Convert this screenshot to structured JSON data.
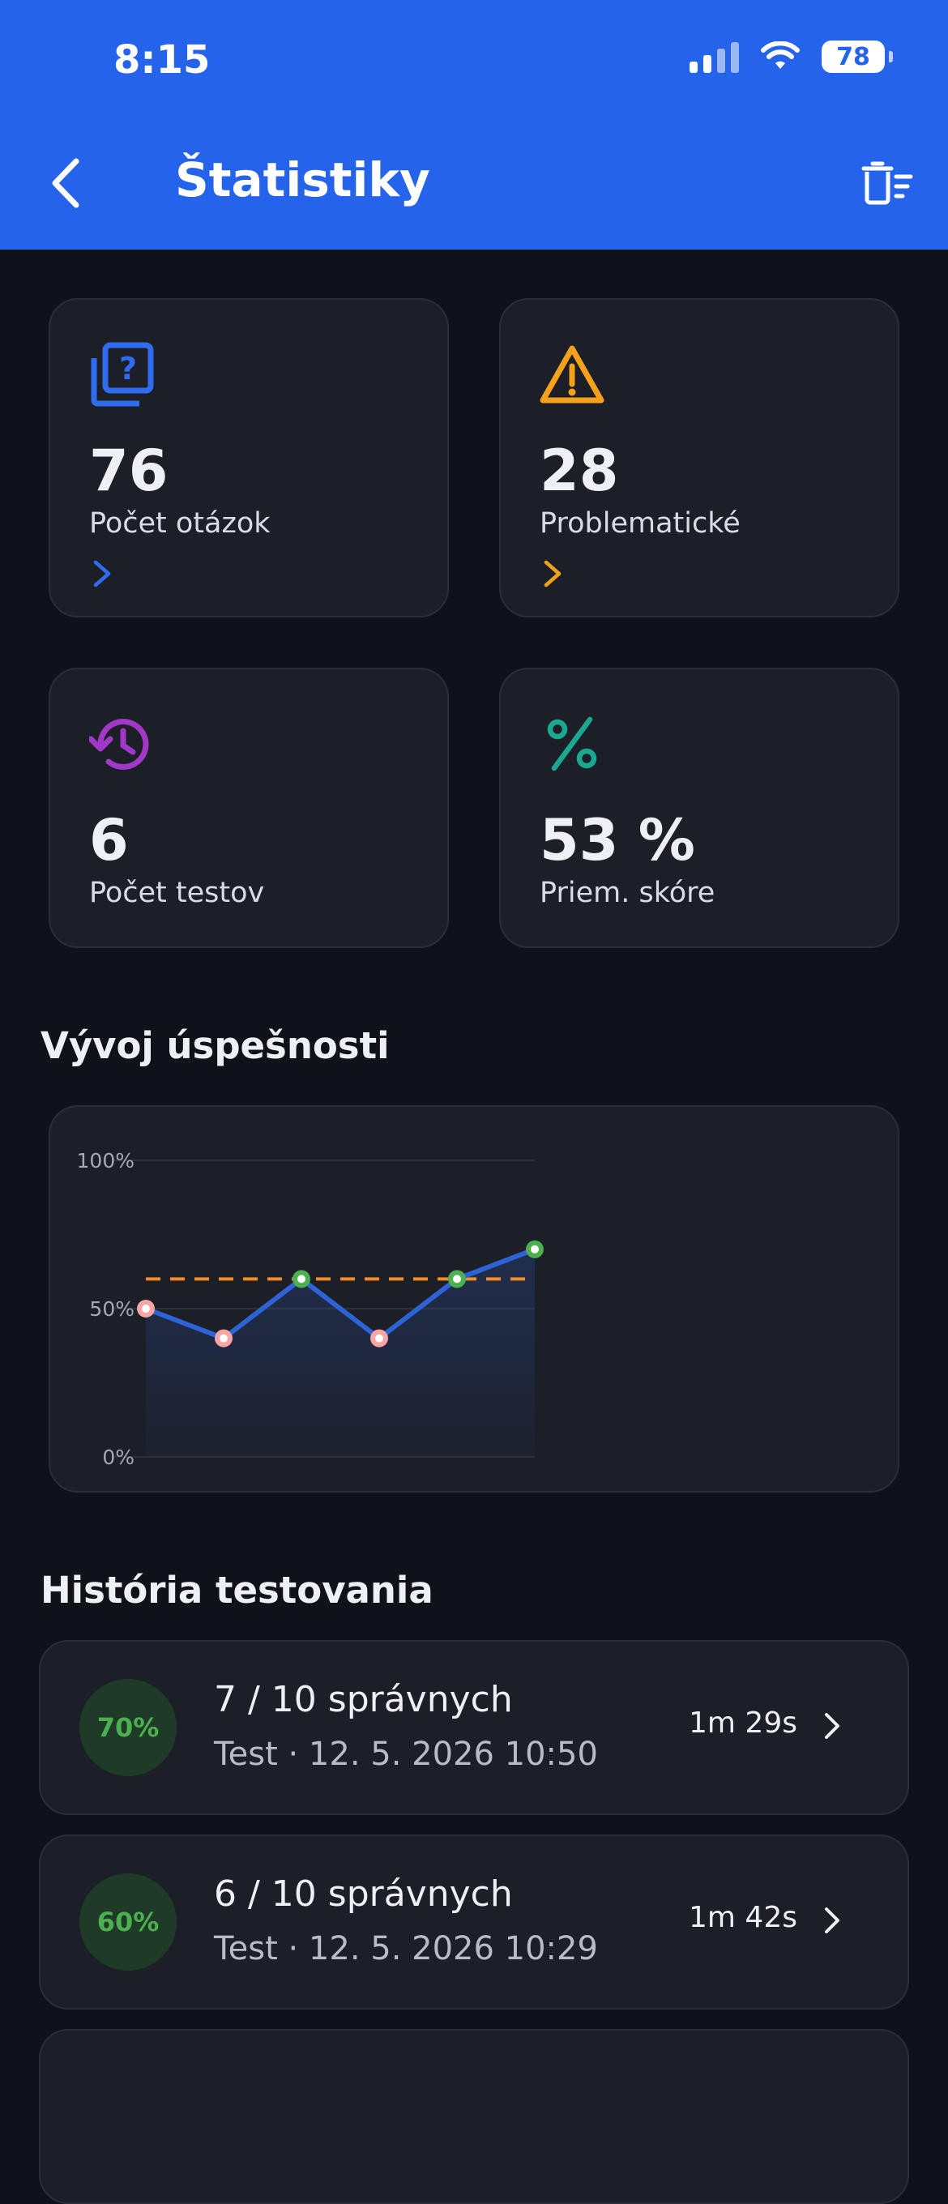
{
  "status_bar": {
    "time": "8:15",
    "battery": "78"
  },
  "header": {
    "title": "Štatistiky"
  },
  "stats": [
    {
      "value": "76",
      "label": "Počet otázok",
      "icon": "quiz-question-icon",
      "color": "#2f6cf0"
    },
    {
      "value": "28",
      "label": "Problematické",
      "icon": "warning-icon",
      "color": "#f5a11c"
    },
    {
      "value": "6",
      "label": "Počet testov",
      "icon": "history-clock-icon",
      "color": "#a238c8"
    },
    {
      "value": "53 %",
      "label": "Priem. skóre",
      "icon": "percent-icon",
      "color": "#1aa890"
    }
  ],
  "chart_section": {
    "title": "Vývoj úspešnosti"
  },
  "chart_data": {
    "type": "line",
    "x": [
      1,
      2,
      3,
      4,
      5,
      6
    ],
    "series": [
      {
        "values": [
          50,
          40,
          60,
          40,
          60,
          70
        ]
      }
    ],
    "average_line": 60,
    "ylim": [
      0,
      100
    ],
    "yticks": [
      "0%",
      "50%",
      "100%"
    ],
    "colors": {
      "line": "#2e63d6",
      "average": "#f28c28",
      "pass_marker": "#4caf50",
      "fail_marker": "#f8a5a5"
    }
  },
  "history": {
    "title": "História testovania",
    "items": [
      {
        "score": "70%",
        "title": "7 / 10 správnych",
        "subtitle": "Test · 12. 5. 2026 10:50",
        "duration": "1m 29s"
      },
      {
        "score": "60%",
        "title": "6 / 10 správnych",
        "subtitle": "Test · 12. 5. 2026 10:29",
        "duration": "1m 42s"
      }
    ]
  }
}
